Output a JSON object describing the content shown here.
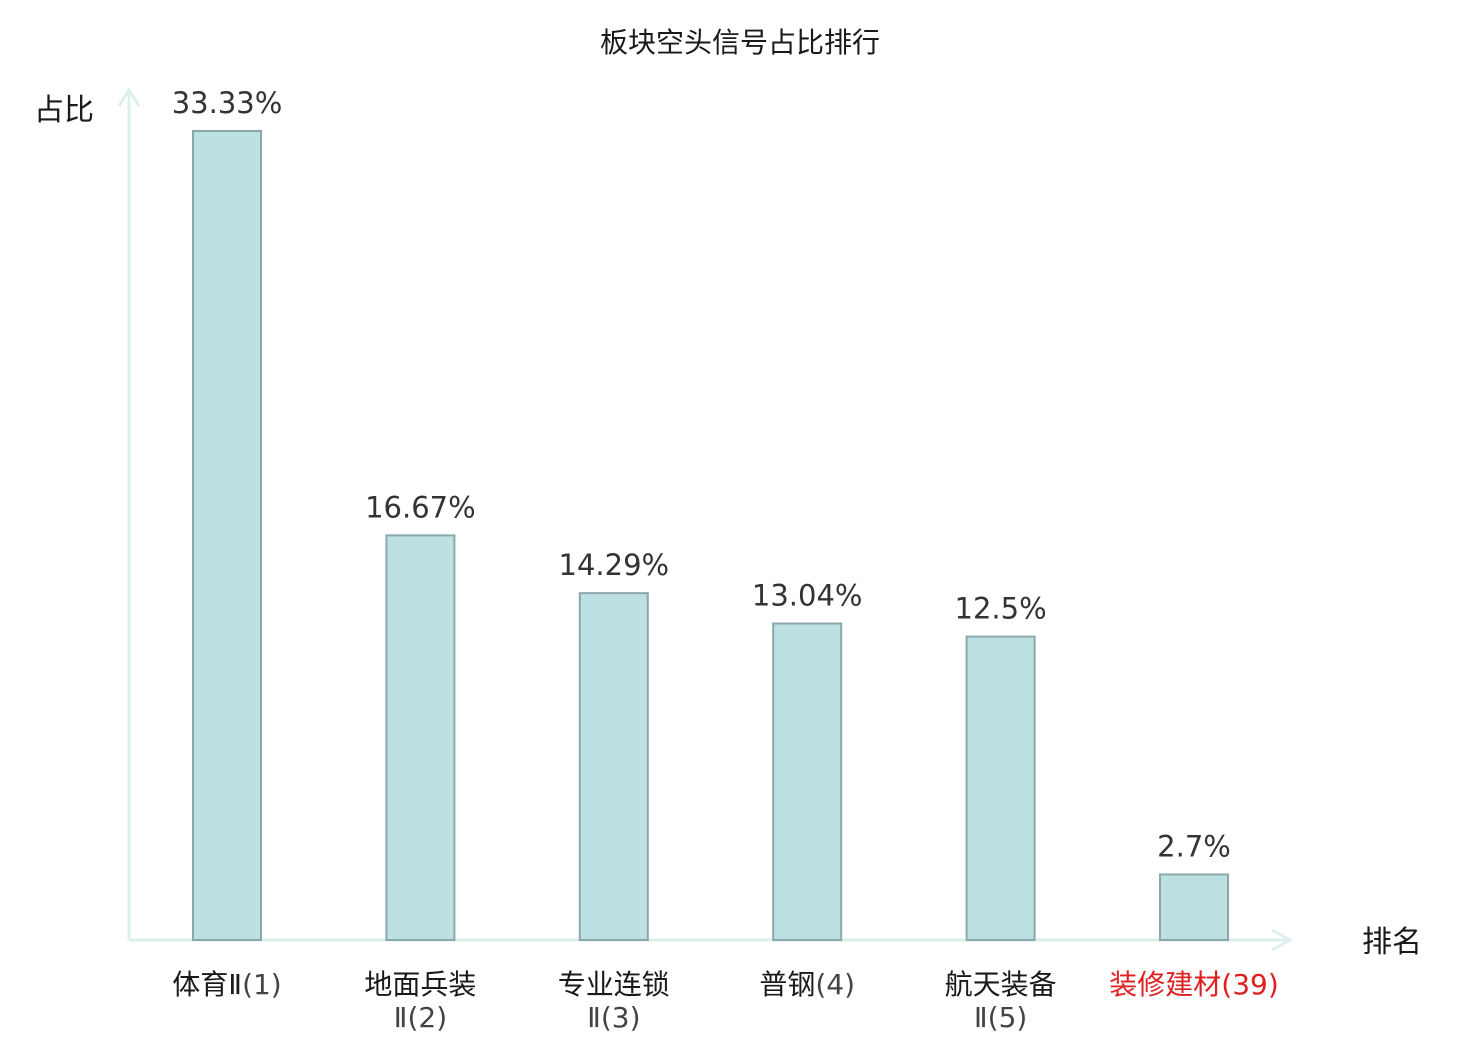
{
  "chart_data": {
    "type": "bar",
    "title": "板块空头信号占比排行",
    "ylabel": "占比",
    "xlabel": "排名",
    "categories": [
      "体育Ⅱ",
      "地面兵装Ⅱ",
      "专业连锁Ⅱ",
      "普钢",
      "航天装备Ⅱ",
      "装修建材"
    ],
    "category_labels": [
      {
        "name": "体育Ⅱ",
        "rank": "(1)",
        "highlight": false
      },
      {
        "name": "地面兵装",
        "rank": "Ⅱ(2)",
        "highlight": false
      },
      {
        "name": "专业连锁",
        "rank": "Ⅱ(3)",
        "highlight": false
      },
      {
        "name": "普钢",
        "rank": "(4)",
        "highlight": false
      },
      {
        "name": "航天装备",
        "rank": "Ⅱ(5)",
        "highlight": false
      },
      {
        "name": "装修建材",
        "rank": "(39)",
        "highlight": true
      }
    ],
    "values": [
      33.33,
      16.67,
      14.29,
      13.04,
      12.5,
      2.7
    ],
    "value_labels": [
      "33.33%",
      "16.67%",
      "14.29%",
      "13.04%",
      "12.5%",
      "2.7%"
    ],
    "ylim": [
      0,
      33.33
    ],
    "grid": false,
    "legend": "none",
    "colors": {
      "bar_fill": "#bde0e3",
      "bar_stroke": "#8aa8ab",
      "axis": "#dcefed",
      "text": "#1a1a1a",
      "rank_text": "#444444",
      "highlight": "#e02020"
    }
  }
}
